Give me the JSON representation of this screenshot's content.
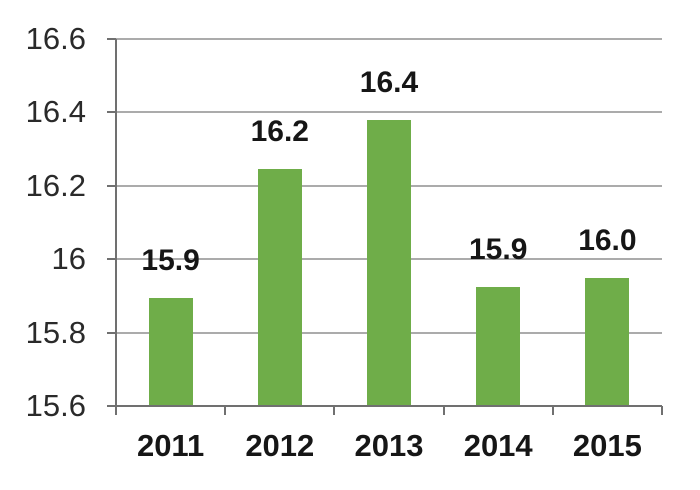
{
  "page": {
    "background_color": "#FFFFFF"
  },
  "chart_data": {
    "type": "bar",
    "title": "",
    "xlabel": "",
    "ylabel": "",
    "categories": [
      "2011",
      "2012",
      "2013",
      "2014",
      "2015"
    ],
    "values": [
      15.895,
      16.245,
      16.38,
      15.925,
      15.95
    ],
    "data_labels": [
      "15.9",
      "16.2",
      "16.4",
      "15.9",
      "16.0"
    ],
    "ylim": [
      15.6,
      16.6
    ],
    "ytick_interval": 0.2,
    "ytick_labels_top_to_bottom": [
      "16.6",
      "16.4",
      "16.2",
      "16",
      "15.8",
      "15.6"
    ],
    "grid": "horizontal",
    "legend": "none",
    "colors": {
      "bar": "#6FAD49",
      "gridline": "#ABABAB",
      "axis": "#707070",
      "tick_label_text": "#2A2A2A",
      "category_label_text": "#161616",
      "data_label_text": "#161616",
      "background": "#FFFFFF"
    }
  }
}
